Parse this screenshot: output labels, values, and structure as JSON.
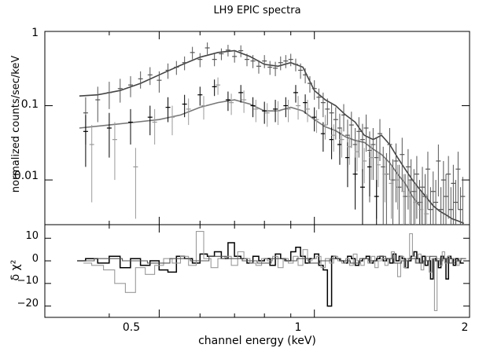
{
  "chart_data": [
    {
      "type": "line",
      "panel": "spectrum",
      "title": "LH9 EPIC spectra",
      "xlabel": "channel energy (keV)",
      "ylabel": "normalized counts/sec/keV",
      "x_scale": "log",
      "y_scale": "log",
      "xlim": [
        0.3,
        2.0
      ],
      "ylim": [
        0.0025,
        1.0
      ],
      "y_ticks": [
        "1",
        "0.1",
        "0.01"
      ],
      "colors": {
        "pn": "#555555",
        "mos1": "#000000",
        "mos2": "#9a9a9a",
        "model": "#444444"
      },
      "series": [
        {
          "style": "model-pn",
          "x": [
            0.35,
            0.38,
            0.42,
            0.46,
            0.5,
            0.55,
            0.6,
            0.65,
            0.7,
            0.75,
            0.8,
            0.85,
            0.9,
            0.95,
            1.0,
            1.05,
            1.1,
            1.15,
            1.2,
            1.25,
            1.3,
            1.35,
            1.4,
            1.45,
            1.5,
            1.55,
            1.6,
            1.65,
            1.7,
            1.75,
            1.8,
            1.85,
            1.9,
            1.95
          ],
          "values": [
            0.135,
            0.14,
            0.16,
            0.2,
            0.26,
            0.35,
            0.45,
            0.52,
            0.55,
            0.46,
            0.36,
            0.34,
            0.38,
            0.33,
            0.16,
            0.12,
            0.1,
            0.075,
            0.06,
            0.04,
            0.035,
            0.04,
            0.03,
            0.02,
            0.014,
            0.01,
            0.0075,
            0.0058,
            0.0045,
            0.0038,
            0.0034,
            0.003,
            0.0028,
            0.0026
          ]
        },
        {
          "style": "model-mos",
          "x": [
            0.35,
            0.4,
            0.45,
            0.5,
            0.55,
            0.6,
            0.65,
            0.7,
            0.75,
            0.8,
            0.85,
            0.9,
            0.95,
            1.0,
            1.05,
            1.1,
            1.15,
            1.2,
            1.25,
            1.3,
            1.35,
            1.4,
            1.45,
            1.5,
            1.55,
            1.6
          ],
          "values": [
            0.05,
            0.055,
            0.06,
            0.065,
            0.075,
            0.095,
            0.11,
            0.12,
            0.105,
            0.085,
            0.085,
            0.095,
            0.085,
            0.065,
            0.052,
            0.046,
            0.038,
            0.034,
            0.032,
            0.026,
            0.022,
            0.017,
            0.012,
            0.009,
            0.006,
            0.0045
          ]
        },
        {
          "style": "data-pn",
          "x": [
            0.36,
            0.38,
            0.4,
            0.42,
            0.44,
            0.46,
            0.48,
            0.5,
            0.52,
            0.54,
            0.56,
            0.58,
            0.6,
            0.62,
            0.64,
            0.66,
            0.68,
            0.7,
            0.72,
            0.74,
            0.76,
            0.78,
            0.8,
            0.82,
            0.84,
            0.86,
            0.88,
            0.9,
            0.92,
            0.94,
            0.96,
            0.98,
            1.0,
            1.02,
            1.04,
            1.06,
            1.08,
            1.1,
            1.12,
            1.14,
            1.16,
            1.18,
            1.2,
            1.22,
            1.24,
            1.26,
            1.28,
            1.3,
            1.32,
            1.34,
            1.36,
            1.38,
            1.4,
            1.42,
            1.44,
            1.46,
            1.48,
            1.5,
            1.52,
            1.54,
            1.56,
            1.58,
            1.6,
            1.62,
            1.64,
            1.66,
            1.68,
            1.7,
            1.72,
            1.74,
            1.76,
            1.78,
            1.8,
            1.82,
            1.84,
            1.86,
            1.88,
            1.9,
            1.92,
            1.94
          ],
          "values": [
            0.08,
            0.12,
            0.15,
            0.17,
            0.19,
            0.23,
            0.26,
            0.22,
            0.3,
            0.33,
            0.38,
            0.52,
            0.42,
            0.6,
            0.42,
            0.5,
            0.56,
            0.46,
            0.55,
            0.42,
            0.4,
            0.34,
            0.4,
            0.33,
            0.32,
            0.38,
            0.4,
            0.42,
            0.36,
            0.3,
            0.26,
            0.2,
            0.17,
            0.13,
            0.11,
            0.09,
            0.08,
            0.065,
            0.05,
            0.075,
            0.04,
            0.055,
            0.03,
            0.045,
            0.035,
            0.05,
            0.025,
            0.03,
            0.02,
            0.042,
            0.015,
            0.012,
            0.03,
            0.01,
            0.018,
            0.008,
            0.022,
            0.006,
            0.015,
            0.01,
            0.007,
            0.012,
            0.005,
            0.008,
            0.006,
            0.014,
            0.004,
            0.007,
            0.005,
            0.018,
            0.004,
            0.01,
            0.006,
            0.012,
            0.004,
            0.009,
            0.005,
            0.014,
            0.004,
            0.006
          ],
          "err": [
            0.05,
            0.06,
            0.06,
            0.06,
            0.06,
            0.06,
            0.07,
            0.07,
            0.07,
            0.07,
            0.08,
            0.1,
            0.09,
            0.11,
            0.08,
            0.09,
            0.1,
            0.08,
            0.1,
            0.08,
            0.08,
            0.07,
            0.08,
            0.07,
            0.07,
            0.08,
            0.08,
            0.08,
            0.07,
            0.07,
            0.06,
            0.05,
            0.05,
            0.04,
            0.04,
            0.035,
            0.03,
            0.03,
            0.028,
            0.03,
            0.025,
            0.028,
            0.02,
            0.025,
            0.022,
            0.026,
            0.02,
            0.02,
            0.017,
            0.024,
            0.013,
            0.011,
            0.02,
            0.009,
            0.013,
            0.008,
            0.015,
            0.006,
            0.011,
            0.009,
            0.007,
            0.009,
            0.005,
            0.007,
            0.006,
            0.01,
            0.004,
            0.006,
            0.005,
            0.012,
            0.004,
            0.008,
            0.006,
            0.009,
            0.004,
            0.007,
            0.005,
            0.01,
            0.004,
            0.005
          ]
        },
        {
          "style": "data-mos1",
          "x": [
            0.36,
            0.4,
            0.44,
            0.48,
            0.52,
            0.56,
            0.6,
            0.64,
            0.68,
            0.72,
            0.76,
            0.8,
            0.84,
            0.88,
            0.92,
            0.96,
            1.0,
            1.04,
            1.08,
            1.12,
            1.16,
            1.2,
            1.24,
            1.28,
            1.32
          ],
          "values": [
            0.045,
            0.05,
            0.06,
            0.07,
            0.095,
            0.105,
            0.14,
            0.18,
            0.12,
            0.15,
            0.1,
            0.085,
            0.09,
            0.1,
            0.15,
            0.11,
            0.07,
            0.042,
            0.035,
            0.03,
            0.02,
            0.012,
            0.008,
            0.015,
            0.006
          ],
          "err": [
            0.03,
            0.03,
            0.03,
            0.03,
            0.035,
            0.035,
            0.04,
            0.045,
            0.035,
            0.04,
            0.03,
            0.028,
            0.03,
            0.03,
            0.04,
            0.032,
            0.025,
            0.018,
            0.016,
            0.014,
            0.012,
            0.008,
            0.006,
            0.009,
            0.004
          ]
        },
        {
          "style": "data-mos2",
          "x": [
            0.37,
            0.41,
            0.45,
            0.49,
            0.53,
            0.57,
            0.61,
            0.65,
            0.69,
            0.73,
            0.77,
            0.81,
            0.85,
            0.89,
            0.93,
            0.97,
            1.01,
            1.05,
            1.09,
            1.13,
            1.17,
            1.21,
            1.25,
            1.29,
            1.33,
            1.37,
            1.41,
            1.45,
            1.49,
            1.53,
            1.57,
            1.61,
            1.65
          ],
          "values": [
            0.03,
            0.035,
            0.015,
            0.06,
            0.07,
            0.09,
            0.1,
            0.19,
            0.11,
            0.12,
            0.09,
            0.08,
            0.085,
            0.09,
            0.1,
            0.09,
            0.065,
            0.055,
            0.04,
            0.035,
            0.028,
            0.024,
            0.018,
            0.02,
            0.016,
            0.012,
            0.009,
            0.01,
            0.007,
            0.006,
            0.005,
            0.004,
            0.0035
          ],
          "err": [
            0.025,
            0.025,
            0.012,
            0.03,
            0.03,
            0.035,
            0.035,
            0.05,
            0.035,
            0.04,
            0.03,
            0.028,
            0.03,
            0.03,
            0.035,
            0.03,
            0.022,
            0.02,
            0.016,
            0.015,
            0.012,
            0.011,
            0.009,
            0.01,
            0.008,
            0.007,
            0.006,
            0.006,
            0.005,
            0.004,
            0.004,
            0.003,
            0.003
          ]
        }
      ]
    },
    {
      "type": "line",
      "panel": "residuals",
      "xlabel": "channel energy (keV)",
      "ylabel": "δ χ²",
      "x_scale": "log",
      "xlim": [
        0.3,
        2.0
      ],
      "ylim": [
        -25,
        16
      ],
      "x_ticks": [
        "0.5",
        "1",
        "2"
      ],
      "y_ticks": [
        "10",
        "0",
        "−10",
        "−20"
      ],
      "series": [
        {
          "style": "resid-mos1",
          "x": [
            0.35,
            0.37,
            0.39,
            0.41,
            0.43,
            0.45,
            0.47,
            0.49,
            0.51,
            0.53,
            0.55,
            0.57,
            0.59,
            0.61,
            0.63,
            0.65,
            0.67,
            0.69,
            0.71,
            0.73,
            0.75,
            0.77,
            0.79,
            0.81,
            0.83,
            0.85,
            0.87,
            0.89,
            0.91,
            0.93,
            0.95,
            0.97,
            0.99,
            1.01,
            1.03,
            1.05,
            1.07,
            1.09,
            1.11,
            1.13,
            1.15,
            1.17,
            1.19,
            1.21,
            1.23,
            1.25,
            1.27,
            1.29,
            1.31,
            1.33,
            1.35,
            1.37,
            1.39,
            1.41,
            1.43,
            1.45,
            1.47,
            1.49,
            1.51,
            1.53,
            1.55,
            1.57,
            1.59,
            1.61,
            1.63,
            1.65,
            1.67,
            1.69,
            1.71,
            1.73,
            1.75,
            1.77,
            1.79,
            1.81,
            1.83,
            1.85,
            1.87,
            1.89,
            1.91,
            1.93
          ],
          "values": [
            0,
            1,
            -1,
            2,
            -3,
            1,
            -2,
            0,
            -4,
            -5,
            2,
            1,
            -1,
            3,
            2,
            4,
            1,
            8,
            2,
            1,
            -1,
            2,
            0,
            1,
            -2,
            3,
            1,
            0,
            4,
            6,
            2,
            -1,
            1,
            3,
            -2,
            -4,
            -20,
            2,
            1,
            0,
            -1,
            2,
            1,
            -2,
            0,
            1,
            2,
            -1,
            0,
            1,
            2,
            0,
            1,
            -1,
            3,
            0,
            2,
            1,
            -3,
            0,
            2,
            4,
            1,
            -1,
            2,
            -2,
            0,
            -8,
            1,
            0,
            -3,
            2,
            1,
            -8,
            2,
            1,
            -2,
            1,
            0,
            -1
          ]
        },
        {
          "style": "resid-mos2",
          "x": [
            0.36,
            0.38,
            0.4,
            0.42,
            0.44,
            0.46,
            0.48,
            0.5,
            0.52,
            0.54,
            0.56,
            0.58,
            0.6,
            0.62,
            0.64,
            0.66,
            0.68,
            0.7,
            0.72,
            0.74,
            0.76,
            0.78,
            0.8,
            0.82,
            0.84,
            0.86,
            0.88,
            0.9,
            0.92,
            0.94,
            0.96,
            0.98,
            1.0,
            1.02,
            1.04,
            1.06,
            1.08,
            1.1,
            1.12,
            1.14,
            1.16,
            1.18,
            1.2,
            1.22,
            1.24,
            1.26,
            1.28,
            1.3,
            1.32,
            1.34,
            1.36,
            1.38,
            1.4,
            1.42,
            1.44,
            1.46,
            1.48,
            1.5,
            1.52,
            1.54,
            1.56,
            1.58,
            1.6,
            1.62,
            1.64,
            1.66,
            1.68,
            1.7,
            1.72,
            1.74,
            1.76,
            1.78,
            1.8,
            1.82,
            1.84,
            1.86,
            1.88,
            1.9,
            1.92
          ],
          "values": [
            -1,
            -2,
            -4,
            -10,
            -14,
            -3,
            -6,
            -2,
            1,
            -1,
            2,
            -2,
            13,
            1,
            -3,
            1,
            2,
            -2,
            4,
            1,
            -1,
            -2,
            1,
            0,
            2,
            -3,
            1,
            -1,
            2,
            -2,
            5,
            0,
            1,
            2,
            -3,
            1,
            -1,
            2,
            0,
            -1,
            1,
            -2,
            3,
            0,
            -2,
            1,
            -1,
            2,
            -3,
            0,
            1,
            -2,
            1,
            4,
            -1,
            -7,
            2,
            -3,
            1,
            12,
            2,
            -1,
            3,
            -4,
            0,
            2,
            -5,
            1,
            -22,
            1,
            -2,
            4,
            -1,
            2,
            -1,
            1,
            0,
            -2,
            1
          ]
        },
        {
          "style": "resid-pn",
          "x": [
            0.35,
            0.4,
            0.45,
            0.5,
            0.55,
            0.6,
            0.65,
            0.7,
            0.75,
            0.8,
            0.85,
            0.9,
            0.95,
            1.0,
            1.05,
            1.1,
            1.15,
            1.2,
            1.25,
            1.3,
            1.35,
            1.4,
            1.45,
            1.5,
            1.55,
            1.6,
            1.65,
            1.7,
            1.75,
            1.8,
            1.85,
            1.9,
            1.95
          ],
          "values": [
            0,
            1,
            0,
            -1,
            1,
            0,
            2,
            1,
            0,
            -1,
            1,
            0,
            1,
            -1,
            0,
            1,
            0,
            -1,
            1,
            0,
            2,
            1,
            -1,
            0,
            1,
            -1,
            0,
            2,
            0,
            1,
            -1,
            0,
            1
          ]
        }
      ]
    }
  ]
}
